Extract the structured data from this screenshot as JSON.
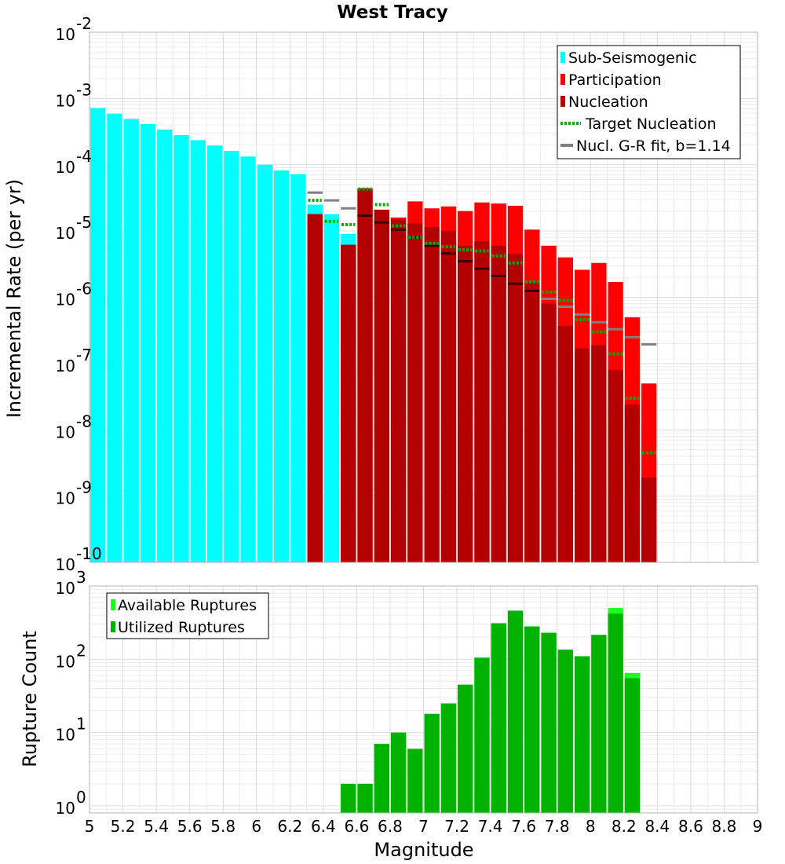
{
  "title": "West Tracy",
  "colors": {
    "sub_seismogenic": "#00ffff",
    "participation": "#ff0000",
    "nucleation": "#b30000",
    "target_nucleation": "#00b000",
    "gr_fit": "#808080",
    "available": "#19ff19",
    "utilized": "#00b300",
    "grid_minor": "#ececec",
    "grid_major": "#dcdcdc",
    "frame": "#b4b4b4"
  },
  "chart_data": [
    {
      "type": "bar",
      "panel": "top",
      "title": "West Tracy",
      "xlabel": "",
      "ylabel": "Incremental Rate (per yr)",
      "xlim": [
        5,
        9
      ],
      "ylim": [
        1e-10,
        0.01
      ],
      "yscale": "log",
      "bin_width": 0.1,
      "ytick_labels": [
        {
          "base": "10",
          "exp": "-10",
          "value": 1e-10
        },
        {
          "base": "10",
          "exp": "-9",
          "value": 1e-09
        },
        {
          "base": "10",
          "exp": "-8",
          "value": 1e-08
        },
        {
          "base": "10",
          "exp": "-7",
          "value": 1e-07
        },
        {
          "base": "10",
          "exp": "-6",
          "value": 1e-06
        },
        {
          "base": "10",
          "exp": "-5",
          "value": 1e-05
        },
        {
          "base": "10",
          "exp": "-4",
          "value": 0.0001
        },
        {
          "base": "10",
          "exp": "-3",
          "value": 0.001
        },
        {
          "base": "10",
          "exp": "-2",
          "value": 0.01
        }
      ],
      "legend": {
        "placement": "top-right",
        "entries": [
          {
            "label": "Sub-Seismogenic",
            "style": "bar",
            "color": "#00ffff"
          },
          {
            "label": "Participation",
            "style": "bar",
            "color": "#ff0000"
          },
          {
            "label": "Nucleation",
            "style": "bar",
            "color": "#b30000"
          },
          {
            "label": "Target Nucleation",
            "style": "dotted",
            "color": "#00b000"
          },
          {
            "label": "Nucl. G-R fit, b=1.14",
            "style": "line",
            "color": "#808080"
          }
        ]
      },
      "series": {
        "sub_seismogenic": {
          "x": [
            5.05,
            5.15,
            5.25,
            5.35,
            5.45,
            5.55,
            5.65,
            5.75,
            5.85,
            5.95,
            6.05,
            6.15,
            6.25,
            6.35,
            6.45,
            6.55
          ],
          "values": [
            0.00072,
            0.00059,
            0.00049,
            0.00041,
            0.00034,
            0.00028,
            0.000235,
            0.000195,
            0.000162,
            0.000133,
            0.0001,
            8.2e-05,
            7.2e-05,
            2.5e-05,
            1.8e-05,
            9e-06
          ]
        },
        "participation": {
          "x": [
            6.35,
            6.55,
            6.65,
            6.75,
            6.85,
            6.95,
            7.05,
            7.15,
            7.25,
            7.35,
            7.45,
            7.55,
            7.65,
            7.75,
            7.85,
            7.95,
            8.05,
            8.15,
            8.25,
            8.35
          ],
          "values": [
            1.8e-05,
            6.2e-06,
            4.4e-05,
            2.1e-05,
            1.6e-05,
            2.8e-05,
            2.2e-05,
            2.35e-05,
            2e-05,
            2.7e-05,
            2.6e-05,
            2.4e-05,
            1.05e-05,
            6e-06,
            4e-06,
            2.6e-06,
            3.3e-06,
            1.7e-06,
            5e-07,
            5e-08
          ]
        },
        "nucleation": {
          "x": [
            6.35,
            6.55,
            6.65,
            6.75,
            6.85,
            6.95,
            7.05,
            7.15,
            7.25,
            7.35,
            7.45,
            7.55,
            7.65,
            7.75,
            7.85,
            7.95,
            8.05,
            8.15,
            8.25,
            8.35
          ],
          "values": [
            1.8e-05,
            6.2e-06,
            4.4e-05,
            2.1e-05,
            1.5e-05,
            1.3e-05,
            1.15e-05,
            1e-05,
            6e-06,
            7e-06,
            6e-06,
            4.5e-06,
            1.7e-06,
            8e-07,
            3.7e-07,
            1.7e-07,
            1.9e-07,
            8e-08,
            2.4e-08,
            1.9e-09
          ]
        },
        "target_nucleation": {
          "x": [
            6.35,
            6.45,
            6.55,
            6.65,
            6.75,
            6.85,
            6.95,
            7.05,
            7.15,
            7.25,
            7.35,
            7.45,
            7.55,
            7.65,
            7.75,
            7.85,
            7.95,
            8.05,
            8.15,
            8.25,
            8.35
          ],
          "values": [
            2.9e-05,
            1.4e-05,
            1.25e-05,
            4.3e-05,
            2.5e-05,
            1.2e-05,
            8e-06,
            6.5e-06,
            5.8e-06,
            5.2e-06,
            5e-06,
            4.2e-06,
            3.3e-06,
            1.7e-06,
            1.2e-06,
            9e-07,
            4.6e-07,
            3e-07,
            1.4e-07,
            3e-08,
            4.5e-09
          ]
        },
        "gr_fit": {
          "x": [
            6.35,
            6.45,
            6.55,
            6.65,
            6.75,
            6.85,
            6.95,
            7.05,
            7.15,
            7.25,
            7.35,
            7.45,
            7.55,
            7.65,
            7.75,
            7.85,
            7.95,
            8.05,
            8.15,
            8.25,
            8.35
          ],
          "values": [
            3.8e-05,
            2.9e-05,
            2.2e-05,
            1.7e-05,
            1.35e-05,
            1.05e-05,
            8e-06,
            6e-06,
            4.6e-06,
            3.5e-06,
            2.7e-06,
            2.1e-06,
            1.6e-06,
            1.25e-06,
            9.5e-07,
            7.2e-07,
            5.5e-07,
            4.2e-07,
            3.3e-07,
            2.5e-07,
            1.95e-07
          ]
        }
      }
    },
    {
      "type": "bar",
      "panel": "bottom",
      "xlabel": "Magnitude",
      "ylabel": "Rupture Count",
      "xlim": [
        5,
        9
      ],
      "ylim": [
        0.8,
        1000
      ],
      "yscale": "log",
      "bin_width": 0.1,
      "xtick_labels": [
        "5",
        "5.2",
        "5.4",
        "5.6",
        "5.8",
        "6",
        "6.2",
        "6.4",
        "6.6",
        "6.8",
        "7",
        "7.2",
        "7.4",
        "7.6",
        "7.8",
        "8",
        "8.2",
        "8.4",
        "8.6",
        "8.8",
        "9"
      ],
      "ytick_labels": [
        {
          "base": "10",
          "exp": "0",
          "value": 1
        },
        {
          "base": "10",
          "exp": "1",
          "value": 10
        },
        {
          "base": "10",
          "exp": "2",
          "value": 100
        },
        {
          "base": "10",
          "exp": "3",
          "value": 1000
        }
      ],
      "legend": {
        "placement": "top-left",
        "entries": [
          {
            "label": "Available Ruptures",
            "style": "bar",
            "color": "#19ff19"
          },
          {
            "label": "Utilized Ruptures",
            "style": "bar",
            "color": "#00b300"
          }
        ]
      },
      "series": {
        "available": {
          "x": [
            6.55,
            6.65,
            6.75,
            6.85,
            6.95,
            7.05,
            7.15,
            7.25,
            7.35,
            7.45,
            7.55,
            7.65,
            7.75,
            7.85,
            7.95,
            8.05,
            8.15,
            8.25
          ],
          "values": [
            2,
            2,
            7,
            10,
            6,
            18,
            25,
            45,
            105,
            310,
            460,
            280,
            230,
            135,
            110,
            215,
            500,
            65
          ]
        },
        "utilized": {
          "x": [
            6.55,
            6.65,
            6.75,
            6.85,
            6.95,
            7.05,
            7.15,
            7.25,
            7.35,
            7.45,
            7.55,
            7.65,
            7.75,
            7.85,
            7.95,
            8.05,
            8.15,
            8.25
          ],
          "values": [
            2,
            2,
            7,
            10,
            6,
            18,
            25,
            45,
            105,
            310,
            460,
            280,
            230,
            135,
            110,
            215,
            420,
            55
          ]
        }
      }
    }
  ]
}
